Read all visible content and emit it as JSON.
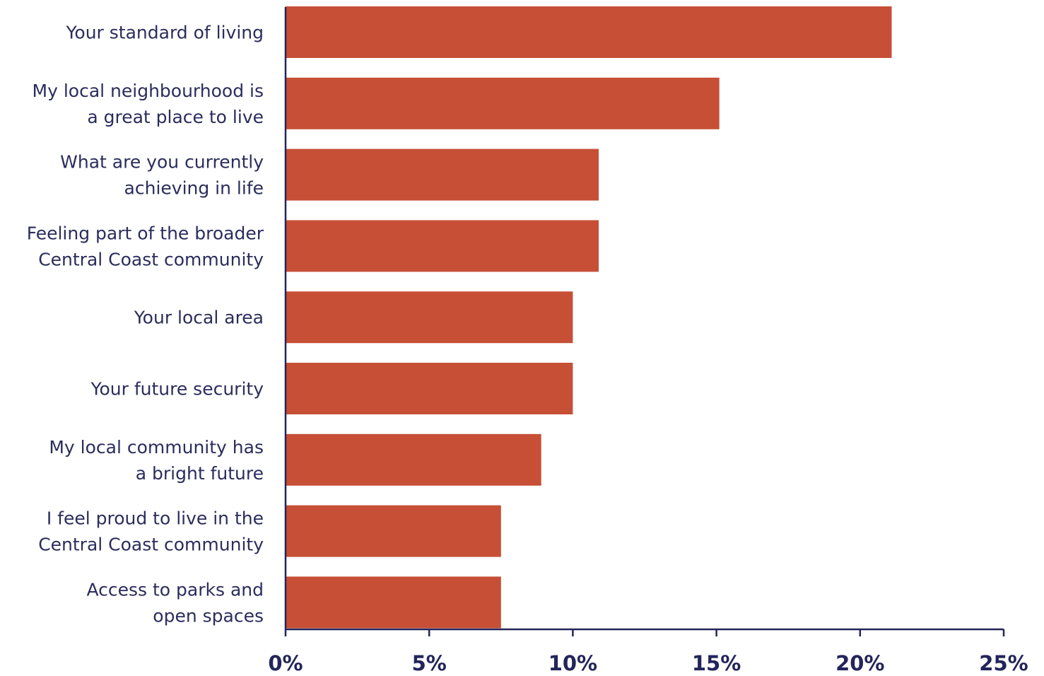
{
  "chart_data": {
    "type": "bar",
    "orientation": "horizontal",
    "categories": [
      [
        "Your standard of living"
      ],
      [
        "My local neighbourhood is",
        "a great place to live"
      ],
      [
        "What are you currently",
        "achieving in life"
      ],
      [
        "Feeling part of the broader",
        "Central Coast community"
      ],
      [
        "Your local area"
      ],
      [
        "Your future security"
      ],
      [
        "My local community has",
        "a bright future"
      ],
      [
        "I feel proud to live in the",
        "Central Coast community"
      ],
      [
        "Access to parks and",
        "open spaces"
      ]
    ],
    "values": [
      21.1,
      15.1,
      10.9,
      10.9,
      10.0,
      10.0,
      8.9,
      7.5,
      7.5
    ],
    "xlim": [
      0,
      25
    ],
    "ticks": [
      0,
      5,
      10,
      15,
      20,
      25
    ],
    "tick_labels": [
      "0%",
      "5%",
      "10%",
      "15%",
      "20%",
      "25%"
    ],
    "grid": false,
    "legend": "none",
    "colors": {
      "bar": "#c64f36",
      "axis": "#23255a",
      "label": "#2b2d5c"
    }
  }
}
